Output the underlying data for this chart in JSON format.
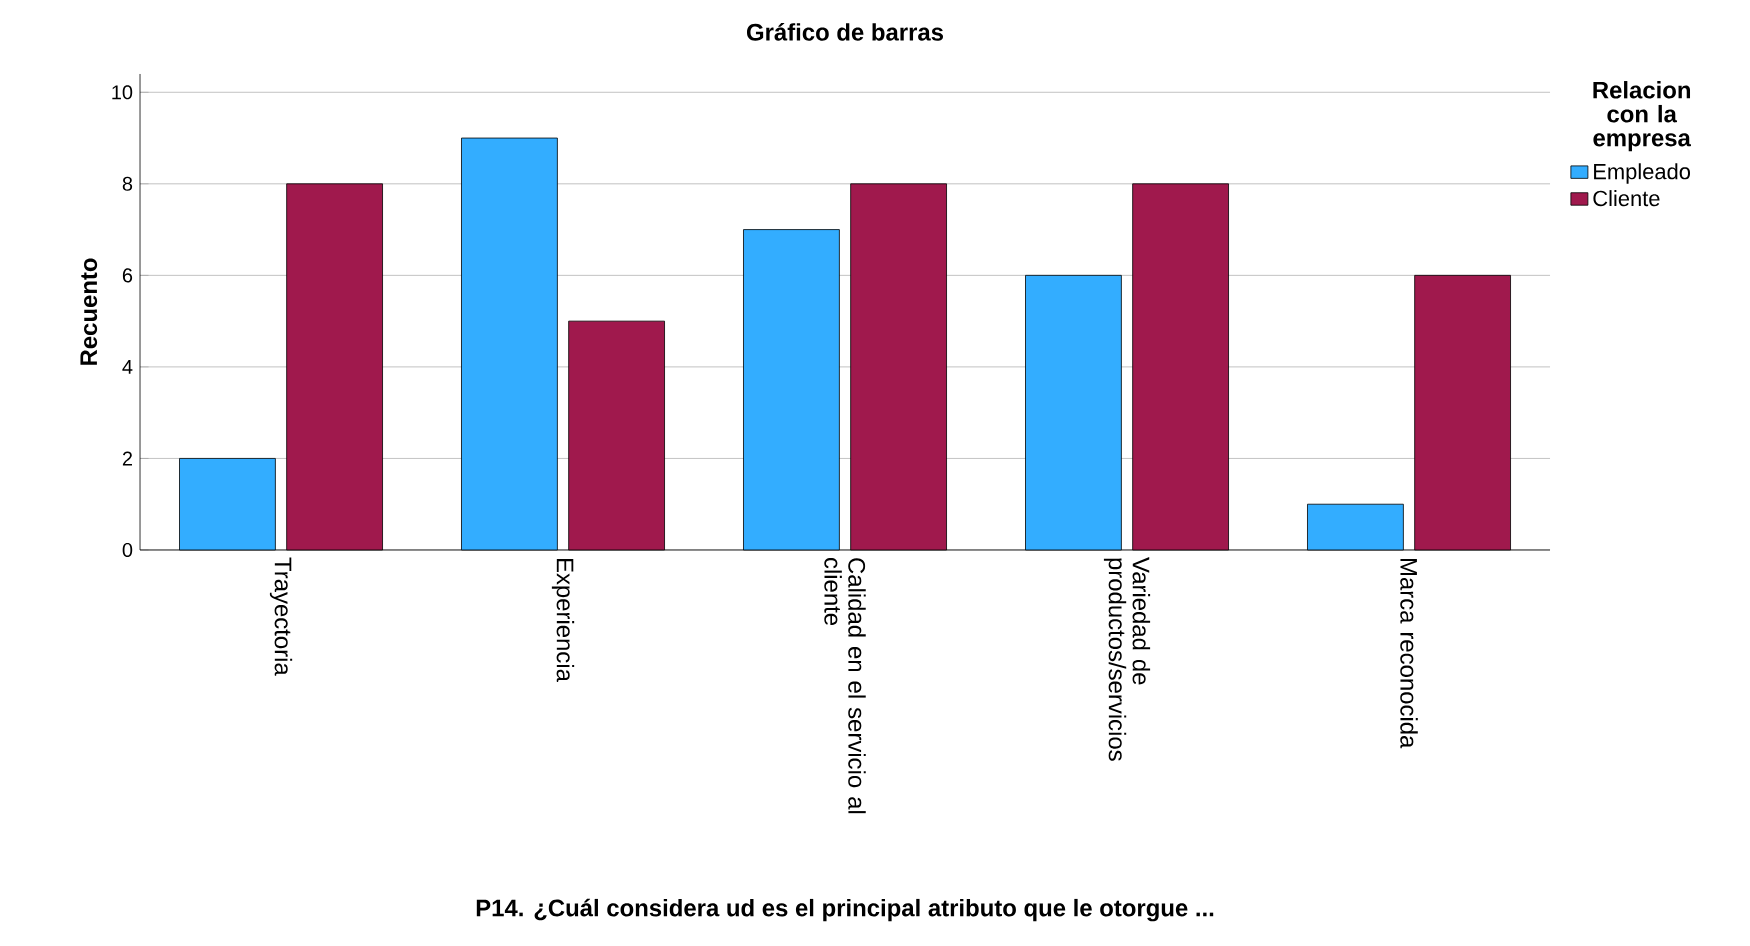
{
  "chart_data": {
    "type": "bar",
    "title": "Gráfico de barras",
    "xlabel": "P14. ¿Cuál considera ud es el principal atributo que le otorgue ...",
    "ylabel": "Recuento",
    "legend_title": "Relacion con la empresa",
    "categories": [
      "Trayectoria",
      "Experiencia",
      "Calidad en el servicio al cliente",
      "Variedad de productos/servicios",
      "Marca reconocida"
    ],
    "series": [
      {
        "name": "Empleado",
        "color": "#33adff",
        "values": [
          2,
          9,
          7,
          6,
          1
        ]
      },
      {
        "name": "Cliente",
        "color": "#a0194d",
        "values": [
          8,
          5,
          8,
          8,
          6
        ]
      }
    ],
    "ylim": [
      0,
      10.4
    ],
    "yticks": [
      0,
      2,
      4,
      6,
      8,
      10
    ],
    "grid": "y",
    "legend": "top right"
  }
}
